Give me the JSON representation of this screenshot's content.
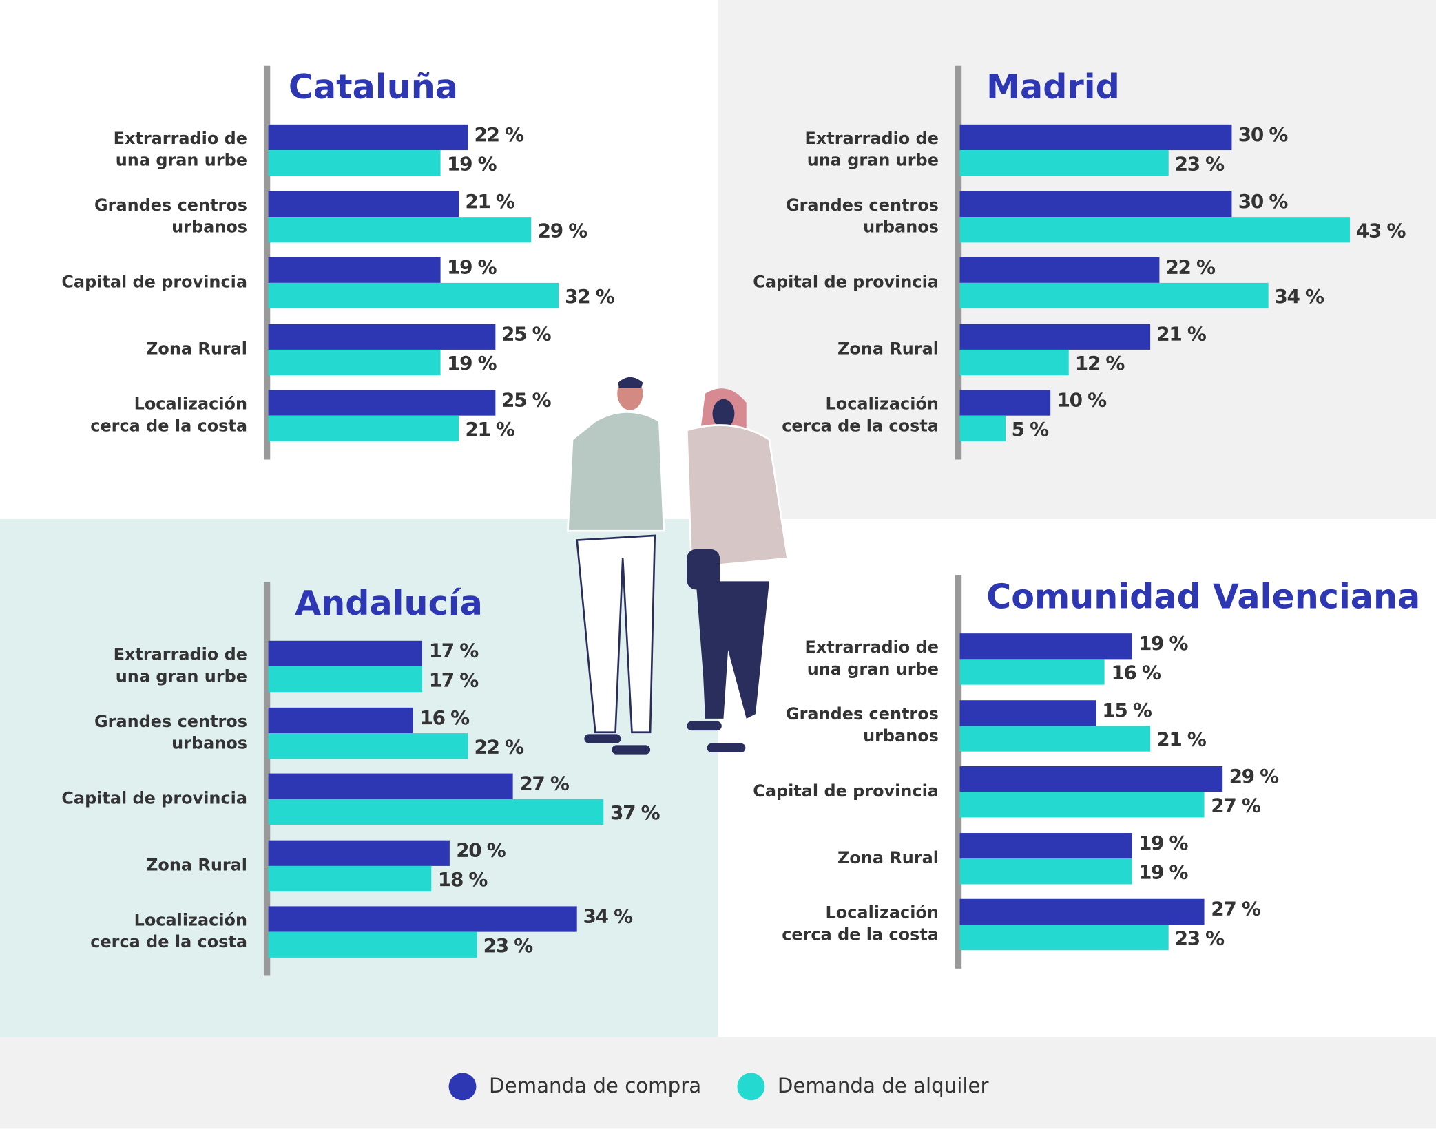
{
  "chart_data": [
    {
      "type": "hbar",
      "title": "Cataluña",
      "categories": [
        "Extrarradio de\nuna gran urbe",
        "Grandes centros\nurbanos",
        "Capital de provincia",
        "Zona Rural",
        "Localización\ncerca de la costa"
      ],
      "series": [
        {
          "name": "Demanda de compra",
          "color": "#2e37b3",
          "values": [
            22,
            21,
            19,
            25,
            25
          ],
          "value_labels": [
            "22 %",
            "21 %",
            "19 %",
            "25 %",
            "25 %"
          ]
        },
        {
          "name": "Demanda de alquiler",
          "color": "#24dad0",
          "values": [
            19,
            29,
            32,
            19,
            21
          ],
          "value_labels": [
            "19 %",
            "29 %",
            "32 %",
            "19 %",
            "21 %"
          ]
        }
      ]
    },
    {
      "type": "hbar",
      "title": "Madrid",
      "categories": [
        "Extrarradio de\nuna gran urbe",
        "Grandes centros\nurbanos",
        "Capital de provincia",
        "Zona Rural",
        "Localización\ncerca de la costa"
      ],
      "series": [
        {
          "color": "#2e37b3",
          "values": [
            30,
            30,
            22,
            21,
            10
          ],
          "value_labels": [
            "30 %",
            "30 %",
            "22 %",
            "21 %",
            "10 %"
          ]
        },
        {
          "color": "#24dad0",
          "values": [
            23,
            43,
            34,
            12,
            5
          ],
          "value_labels": [
            "23 %",
            "43 %",
            "34 %",
            "12 %",
            "5 %"
          ]
        }
      ]
    },
    {
      "type": "hbar",
      "title": "Andalucía",
      "categories": [
        "Extrarradio de\nuna gran urbe",
        "Grandes centros\nurbanos",
        "Capital de provincia",
        "Zona Rural",
        "Localización\ncerca de la costa"
      ],
      "series": [
        {
          "color": "#2e37b3",
          "values": [
            17,
            16,
            27,
            20,
            34
          ],
          "value_labels": [
            "17 %",
            "16 %",
            "27 %",
            "20 %",
            "34 %"
          ]
        },
        {
          "color": "#24dad0",
          "values": [
            17,
            22,
            37,
            18,
            23
          ],
          "value_labels": [
            "17 %",
            "22 %",
            "37 %",
            "18 %",
            "23 %"
          ]
        }
      ]
    },
    {
      "type": "hbar",
      "title": "Comunidad Valenciana",
      "categories": [
        "Extrarradio de\nuna gran urbe",
        "Grandes centros\nurbanos",
        "Capital de provincia",
        "Zona Rural",
        "Localización\ncerca de la costa"
      ],
      "series": [
        {
          "color": "#2e37b3",
          "values": [
            19,
            15,
            29,
            19,
            27
          ],
          "value_labels": [
            "19 %",
            "15 %",
            "29 %",
            "19 %",
            "27 %"
          ]
        },
        {
          "color": "#24dad0",
          "values": [
            16,
            21,
            27,
            19,
            23
          ],
          "value_labels": [
            "16 %",
            "21 %",
            "27 %",
            "19 %",
            "23 %"
          ]
        }
      ]
    }
  ]
}
